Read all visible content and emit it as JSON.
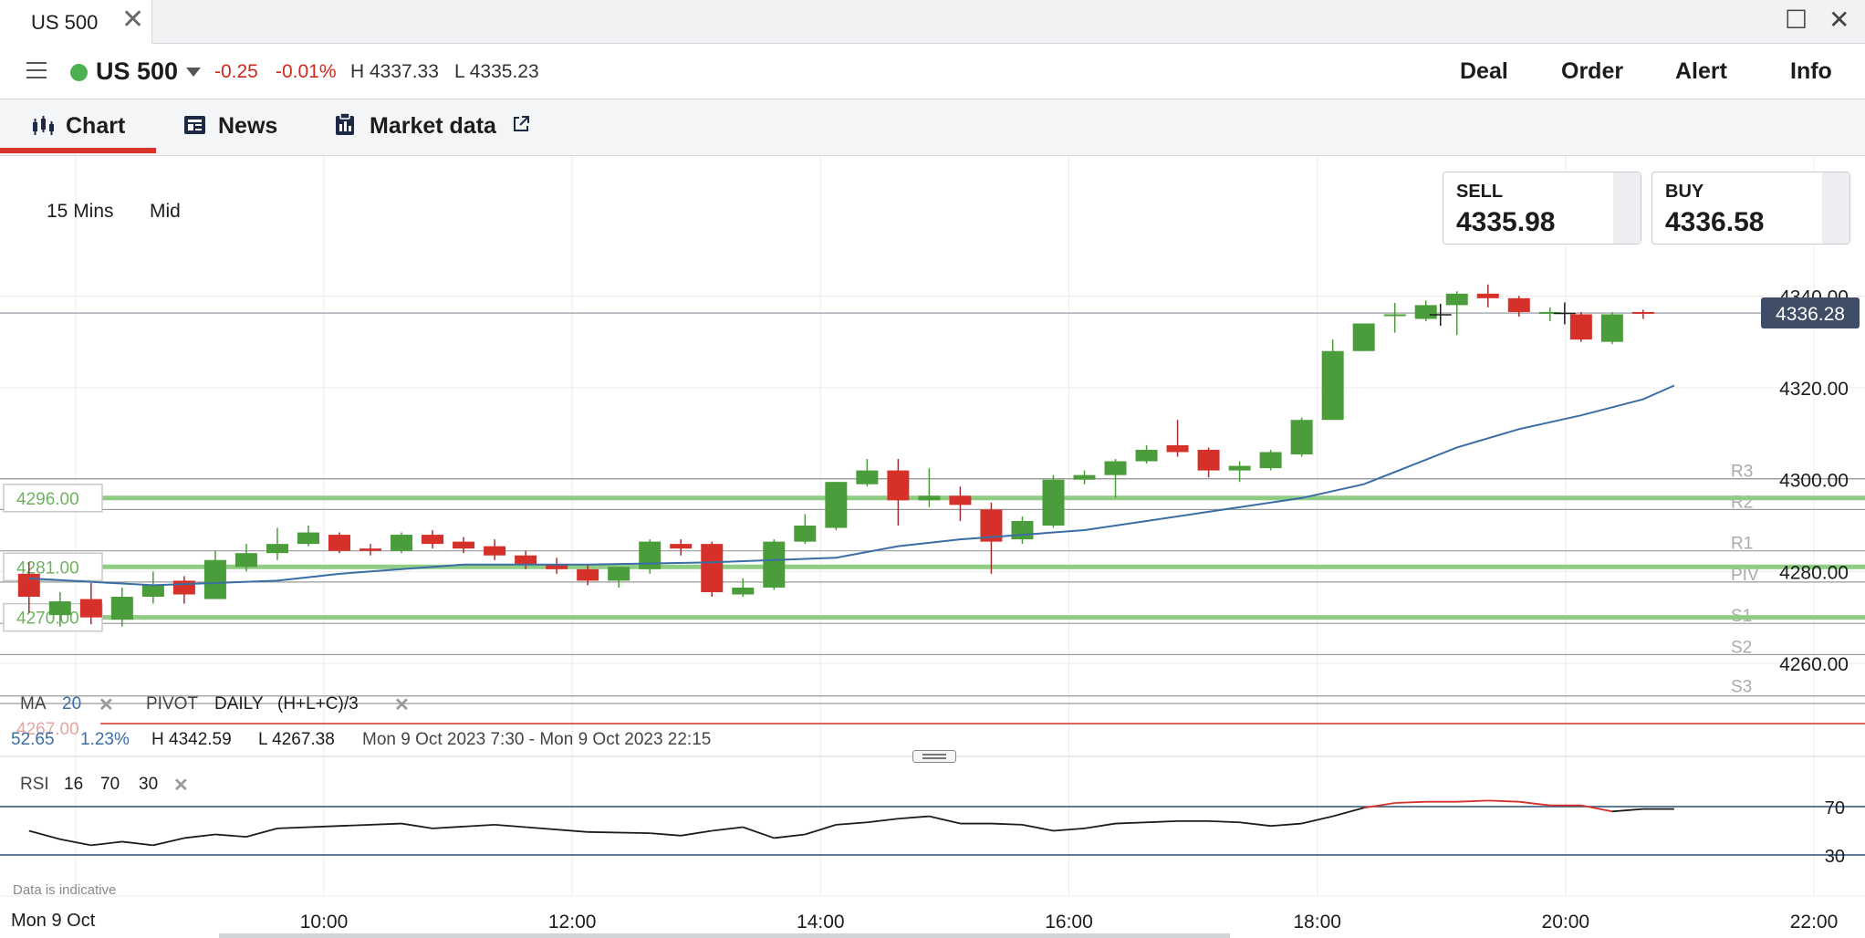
{
  "window": {
    "tab_title": "US 500",
    "tab_close_glyph": "✕",
    "maximize_glyph": "☐",
    "close_glyph": "✕"
  },
  "instrument": {
    "name": "US 500",
    "status_color": "#4caf50",
    "change": "-0.25",
    "change_pct": "-0.01%",
    "high": "H 4337.33",
    "low": "L 4335.23"
  },
  "actions": {
    "deal": "Deal",
    "order": "Order",
    "alert": "Alert",
    "info": "Info"
  },
  "subtabs": {
    "chart": "Chart",
    "news": "News",
    "market_data": "Market data"
  },
  "toolbar": {
    "timeframe": "15 Mins",
    "price_type": "Mid"
  },
  "quote_boxes": {
    "sell_label": "SELL",
    "sell_price": "4335.98",
    "buy_label": "BUY",
    "buy_price": "4336.58"
  },
  "indicators": {
    "ma_label": "MA",
    "ma_period": "20",
    "pivot_label": "PIVOT",
    "pivot_period": "DAILY",
    "pivot_formula": "(H+L+C)/3",
    "stats_change": "52.65",
    "stats_pct": "1.23%",
    "stats_high": "H 4342.59",
    "stats_low": "L 4267.38",
    "stats_range": "Mon 9 Oct 2023 7:30 - Mon 9 Oct 2023 22:15",
    "stats_faded": "4267.00",
    "rsi_label": "RSI",
    "rsi_period": "16",
    "rsi_upper": "70",
    "rsi_lower": "30"
  },
  "footer": {
    "note": "Data is indicative",
    "date": "Mon 9 Oct"
  },
  "colors": {
    "up": "#4a9d3a",
    "down": "#d6302a",
    "ma": "#3a6ea5",
    "pivot_green": "#8fcc84",
    "accent": "#d9342b"
  },
  "chart_data": {
    "type": "candlestick",
    "symbol": "US 500",
    "interval": "15 Mins",
    "x_tick_labels": [
      "10:00",
      "12:00",
      "14:00",
      "16:00",
      "18:00",
      "20:00",
      "22:00"
    ],
    "y_tick_labels": [
      "4260.00",
      "4280.00",
      "4300.00",
      "4320.00",
      "4340.00"
    ],
    "ylim": [
      4252,
      4352
    ],
    "current_price_label": "4336.28",
    "current_price": 4336.28,
    "levels": [
      {
        "name": "R3",
        "value": 4300.2
      },
      {
        "name": "R2",
        "value": 4293.5
      },
      {
        "name": "R1",
        "value": 4284.5
      },
      {
        "name": "PIV",
        "value": 4277.7
      },
      {
        "name": "S1",
        "value": 4268.7
      },
      {
        "name": "S2",
        "value": 4261.9
      },
      {
        "name": "S3",
        "value": 4252.9
      }
    ],
    "horizontal_labels": [
      {
        "label": "4296.00",
        "value": 4296.0
      },
      {
        "label": "4281.00",
        "value": 4281.0
      },
      {
        "label": "4270.00",
        "value": 4270.0
      }
    ],
    "candles": [
      {
        "t": "07:30",
        "o": 4279.5,
        "h": 4282.0,
        "l": 4271.0,
        "c": 4274.5
      },
      {
        "t": "07:45",
        "o": 4270.5,
        "h": 4275.5,
        "l": 4268.0,
        "c": 4273.5
      },
      {
        "t": "08:00",
        "o": 4274.0,
        "h": 4277.5,
        "l": 4268.5,
        "c": 4270.0
      },
      {
        "t": "08:15",
        "o": 4269.5,
        "h": 4276.5,
        "l": 4268.0,
        "c": 4274.5
      },
      {
        "t": "08:30",
        "o": 4274.5,
        "h": 4280.0,
        "l": 4273.0,
        "c": 4277.0
      },
      {
        "t": "08:45",
        "o": 4278.0,
        "h": 4279.0,
        "l": 4273.0,
        "c": 4275.0
      },
      {
        "t": "09:00",
        "o": 4274.0,
        "h": 4284.5,
        "l": 4274.0,
        "c": 4282.5
      },
      {
        "t": "09:15",
        "o": 4281.0,
        "h": 4286.0,
        "l": 4280.0,
        "c": 4284.0
      },
      {
        "t": "09:30",
        "o": 4284.0,
        "h": 4289.5,
        "l": 4282.5,
        "c": 4286.0
      },
      {
        "t": "09:45",
        "o": 4286.0,
        "h": 4290.0,
        "l": 4285.5,
        "c": 4288.5
      },
      {
        "t": "10:00",
        "o": 4288.0,
        "h": 4288.5,
        "l": 4284.0,
        "c": 4284.5
      },
      {
        "t": "10:15",
        "o": 4285.0,
        "h": 4286.0,
        "l": 4283.5,
        "c": 4284.5
      },
      {
        "t": "10:30",
        "o": 4284.5,
        "h": 4288.5,
        "l": 4284.0,
        "c": 4288.0
      },
      {
        "t": "10:45",
        "o": 4288.0,
        "h": 4289.0,
        "l": 4285.0,
        "c": 4286.0
      },
      {
        "t": "11:00",
        "o": 4286.5,
        "h": 4287.5,
        "l": 4284.0,
        "c": 4285.0
      },
      {
        "t": "11:15",
        "o": 4285.5,
        "h": 4287.0,
        "l": 4282.5,
        "c": 4283.5
      },
      {
        "t": "11:30",
        "o": 4283.5,
        "h": 4284.5,
        "l": 4280.5,
        "c": 4281.5
      },
      {
        "t": "11:45",
        "o": 4281.5,
        "h": 4283.0,
        "l": 4279.5,
        "c": 4280.5
      },
      {
        "t": "12:00",
        "o": 4280.5,
        "h": 4281.5,
        "l": 4277.0,
        "c": 4278.0
      },
      {
        "t": "12:15",
        "o": 4278.0,
        "h": 4281.0,
        "l": 4276.5,
        "c": 4281.0
      },
      {
        "t": "12:30",
        "o": 4280.5,
        "h": 4287.0,
        "l": 4279.5,
        "c": 4286.5
      },
      {
        "t": "12:45",
        "o": 4286.0,
        "h": 4287.0,
        "l": 4283.5,
        "c": 4285.0
      },
      {
        "t": "13:00",
        "o": 4286.0,
        "h": 4286.5,
        "l": 4274.5,
        "c": 4275.5
      },
      {
        "t": "13:15",
        "o": 4275.0,
        "h": 4278.5,
        "l": 4274.5,
        "c": 4276.5
      },
      {
        "t": "13:30",
        "o": 4276.5,
        "h": 4287.0,
        "l": 4276.0,
        "c": 4286.5
      },
      {
        "t": "13:45",
        "o": 4286.5,
        "h": 4292.5,
        "l": 4286.0,
        "c": 4290.0
      },
      {
        "t": "14:00",
        "o": 4289.5,
        "h": 4299.5,
        "l": 4289.0,
        "c": 4299.5
      },
      {
        "t": "14:15",
        "o": 4299.0,
        "h": 4304.5,
        "l": 4298.5,
        "c": 4302.0
      },
      {
        "t": "14:30",
        "o": 4302.0,
        "h": 4304.5,
        "l": 4290.0,
        "c": 4295.5
      },
      {
        "t": "14:45",
        "o": 4295.5,
        "h": 4302.5,
        "l": 4294.0,
        "c": 4296.5
      },
      {
        "t": "15:00",
        "o": 4296.5,
        "h": 4298.5,
        "l": 4291.0,
        "c": 4294.5
      },
      {
        "t": "15:15",
        "o": 4293.5,
        "h": 4295.0,
        "l": 4279.5,
        "c": 4286.5
      },
      {
        "t": "15:30",
        "o": 4287.0,
        "h": 4292.0,
        "l": 4286.0,
        "c": 4291.0
      },
      {
        "t": "15:45",
        "o": 4290.0,
        "h": 4301.0,
        "l": 4289.5,
        "c": 4300.0
      },
      {
        "t": "16:00",
        "o": 4300.0,
        "h": 4302.0,
        "l": 4299.0,
        "c": 4301.0
      },
      {
        "t": "16:15",
        "o": 4301.0,
        "h": 4304.5,
        "l": 4296.0,
        "c": 4304.0
      },
      {
        "t": "16:30",
        "o": 4304.0,
        "h": 4307.5,
        "l": 4303.5,
        "c": 4306.5
      },
      {
        "t": "16:45",
        "o": 4307.5,
        "h": 4313.0,
        "l": 4305.0,
        "c": 4306.0
      },
      {
        "t": "17:00",
        "o": 4306.5,
        "h": 4307.0,
        "l": 4300.5,
        "c": 4302.0
      },
      {
        "t": "17:15",
        "o": 4302.0,
        "h": 4304.0,
        "l": 4299.5,
        "c": 4303.0
      },
      {
        "t": "17:30",
        "o": 4302.5,
        "h": 4306.5,
        "l": 4302.0,
        "c": 4306.0
      },
      {
        "t": "17:45",
        "o": 4305.5,
        "h": 4313.5,
        "l": 4305.0,
        "c": 4313.0
      },
      {
        "t": "18:00",
        "o": 4313.0,
        "h": 4330.5,
        "l": 4313.0,
        "c": 4328.0
      },
      {
        "t": "18:15",
        "o": 4328.0,
        "h": 4334.0,
        "l": 4328.0,
        "c": 4334.0
      },
      {
        "t": "18:30",
        "o": 4336.0,
        "h": 4338.5,
        "l": 4332.0,
        "c": 4336.0
      },
      {
        "t": "18:45",
        "o": 4335.0,
        "h": 4339.0,
        "l": 4334.5,
        "c": 4338.0
      },
      {
        "t": "19:00",
        "o": 4338.0,
        "h": 4341.0,
        "l": 4331.5,
        "c": 4340.5
      },
      {
        "t": "19:15",
        "o": 4340.5,
        "h": 4342.5,
        "l": 4337.5,
        "c": 4339.5
      },
      {
        "t": "19:30",
        "o": 4339.5,
        "h": 4340.0,
        "l": 4335.5,
        "c": 4336.5
      },
      {
        "t": "19:45",
        "o": 4336.5,
        "h": 4337.5,
        "l": 4334.5,
        "c": 4336.5
      },
      {
        "t": "20:00",
        "o": 4336.0,
        "h": 4336.5,
        "l": 4330.0,
        "c": 4330.5
      },
      {
        "t": "20:15",
        "o": 4330.0,
        "h": 4336.5,
        "l": 4329.5,
        "c": 4336.0
      },
      {
        "t": "20:30",
        "o": 4336.5,
        "h": 4337.0,
        "l": 4335.0,
        "c": 4336.3
      }
    ],
    "ma": {
      "name": "MA 20",
      "points": [
        {
          "t": "07:30",
          "v": 4278.5
        },
        {
          "t": "08:30",
          "v": 4277.0
        },
        {
          "t": "09:30",
          "v": 4278.0
        },
        {
          "t": "10:00",
          "v": 4279.5
        },
        {
          "t": "11:00",
          "v": 4281.5
        },
        {
          "t": "12:00",
          "v": 4281.5
        },
        {
          "t": "13:00",
          "v": 4282.0
        },
        {
          "t": "14:00",
          "v": 4283.0
        },
        {
          "t": "14:30",
          "v": 4285.5
        },
        {
          "t": "15:00",
          "v": 4287.0
        },
        {
          "t": "16:00",
          "v": 4289.0
        },
        {
          "t": "17:00",
          "v": 4293.0
        },
        {
          "t": "17:45",
          "v": 4296.0
        },
        {
          "t": "18:15",
          "v": 4299.0
        },
        {
          "t": "19:00",
          "v": 4307.0
        },
        {
          "t": "19:30",
          "v": 4311.0
        },
        {
          "t": "20:00",
          "v": 4314.0
        },
        {
          "t": "20:30",
          "v": 4317.5
        },
        {
          "t": "20:45",
          "v": 4320.5
        }
      ]
    },
    "rsi": {
      "ylim": [
        20,
        80
      ],
      "upper": 70,
      "lower": 30,
      "values": [
        {
          "t": "07:30",
          "v": 50
        },
        {
          "t": "07:45",
          "v": 43
        },
        {
          "t": "08:00",
          "v": 38
        },
        {
          "t": "08:15",
          "v": 41
        },
        {
          "t": "08:30",
          "v": 38
        },
        {
          "t": "08:45",
          "v": 44
        },
        {
          "t": "09:00",
          "v": 47
        },
        {
          "t": "09:15",
          "v": 45
        },
        {
          "t": "09:30",
          "v": 52
        },
        {
          "t": "10:00",
          "v": 54
        },
        {
          "t": "10:30",
          "v": 56
        },
        {
          "t": "10:45",
          "v": 52
        },
        {
          "t": "11:15",
          "v": 55
        },
        {
          "t": "11:30",
          "v": 53
        },
        {
          "t": "12:00",
          "v": 49
        },
        {
          "t": "12:30",
          "v": 48
        },
        {
          "t": "12:45",
          "v": 46
        },
        {
          "t": "13:00",
          "v": 50
        },
        {
          "t": "13:15",
          "v": 53
        },
        {
          "t": "13:30",
          "v": 44
        },
        {
          "t": "13:45",
          "v": 47
        },
        {
          "t": "14:00",
          "v": 55
        },
        {
          "t": "14:15",
          "v": 57
        },
        {
          "t": "14:30",
          "v": 60
        },
        {
          "t": "14:45",
          "v": 62
        },
        {
          "t": "15:00",
          "v": 56
        },
        {
          "t": "15:15",
          "v": 56
        },
        {
          "t": "15:30",
          "v": 55
        },
        {
          "t": "15:45",
          "v": 50
        },
        {
          "t": "16:00",
          "v": 52
        },
        {
          "t": "16:15",
          "v": 56
        },
        {
          "t": "16:30",
          "v": 57
        },
        {
          "t": "16:45",
          "v": 58
        },
        {
          "t": "17:00",
          "v": 58
        },
        {
          "t": "17:15",
          "v": 57
        },
        {
          "t": "17:30",
          "v": 54
        },
        {
          "t": "17:45",
          "v": 56
        },
        {
          "t": "18:00",
          "v": 62
        },
        {
          "t": "18:15",
          "v": 69
        },
        {
          "t": "18:30",
          "v": 73
        },
        {
          "t": "18:45",
          "v": 74
        },
        {
          "t": "19:00",
          "v": 74
        },
        {
          "t": "19:15",
          "v": 75
        },
        {
          "t": "19:30",
          "v": 74
        },
        {
          "t": "19:45",
          "v": 71
        },
        {
          "t": "20:00",
          "v": 71
        },
        {
          "t": "20:15",
          "v": 66
        },
        {
          "t": "20:30",
          "v": 68
        },
        {
          "t": "20:45",
          "v": 68
        }
      ]
    }
  }
}
